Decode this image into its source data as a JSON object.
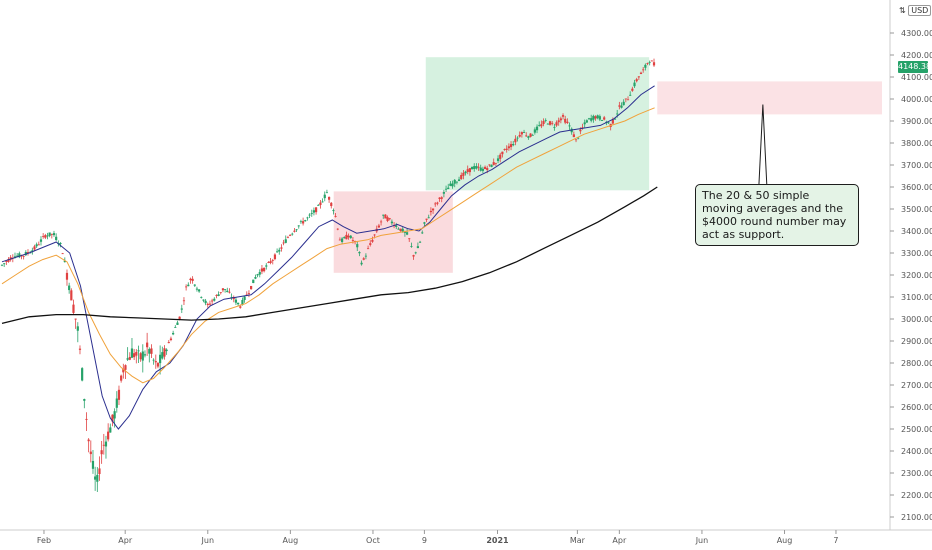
{
  "chart_data": {
    "type": "candlestick",
    "currency": "USD",
    "currency_icon": "scale-icon",
    "last_price": "4148.38",
    "y_ticks": [
      "4300.00",
      "4200.00",
      "4100.00",
      "4000.00",
      "3900.00",
      "3800.00",
      "3700.00",
      "3600.00",
      "3500.00",
      "3400.00",
      "3300.00",
      "3200.00",
      "3100.00",
      "3000.00",
      "2900.00",
      "2800.00",
      "2700.00",
      "2600.00",
      "2500.00",
      "2400.00",
      "2300.00",
      "2200.00",
      "2100.00"
    ],
    "y_tick_values": [
      4300,
      4200,
      4100,
      4000,
      3900,
      3800,
      3700,
      3600,
      3500,
      3400,
      3300,
      3200,
      3100,
      3000,
      2900,
      2800,
      2700,
      2600,
      2500,
      2400,
      2300,
      2200,
      2100
    ],
    "x_ticks": [
      {
        "label": "Feb",
        "t": 31,
        "bold": false
      },
      {
        "label": "Apr",
        "t": 91,
        "bold": false
      },
      {
        "label": "Jun",
        "t": 152,
        "bold": false
      },
      {
        "label": "Aug",
        "t": 213,
        "bold": false
      },
      {
        "label": "Oct",
        "t": 274,
        "bold": false
      },
      {
        "label": "9",
        "t": 312,
        "bold": false
      },
      {
        "label": "2021",
        "t": 366,
        "bold": true
      },
      {
        "label": "Mar",
        "t": 425,
        "bold": false
      },
      {
        "label": "Apr",
        "t": 456,
        "bold": false
      },
      {
        "label": "Jun",
        "t": 517,
        "bold": false
      },
      {
        "label": "Aug",
        "t": 578,
        "bold": false
      },
      {
        "label": "7",
        "t": 616,
        "bold": false
      }
    ],
    "price_path": [
      [
        0,
        3245
      ],
      [
        8,
        3285
      ],
      [
        16,
        3290
      ],
      [
        24,
        3320
      ],
      [
        32,
        3380
      ],
      [
        38,
        3386
      ],
      [
        44,
        3330
      ],
      [
        50,
        3150
      ],
      [
        56,
        2950
      ],
      [
        60,
        2700
      ],
      [
        64,
        2450
      ],
      [
        68,
        2290
      ],
      [
        70,
        2240
      ],
      [
        74,
        2410
      ],
      [
        78,
        2470
      ],
      [
        82,
        2540
      ],
      [
        86,
        2640
      ],
      [
        90,
        2790
      ],
      [
        96,
        2850
      ],
      [
        102,
        2820
      ],
      [
        108,
        2870
      ],
      [
        114,
        2780
      ],
      [
        120,
        2840
      ],
      [
        126,
        2930
      ],
      [
        132,
        3020
      ],
      [
        136,
        3140
      ],
      [
        140,
        3190
      ],
      [
        146,
        3120
      ],
      [
        152,
        3060
      ],
      [
        158,
        3100
      ],
      [
        164,
        3140
      ],
      [
        170,
        3100
      ],
      [
        176,
        3060
      ],
      [
        182,
        3120
      ],
      [
        188,
        3200
      ],
      [
        194,
        3230
      ],
      [
        200,
        3270
      ],
      [
        206,
        3320
      ],
      [
        212,
        3380
      ],
      [
        220,
        3430
      ],
      [
        228,
        3470
      ],
      [
        234,
        3510
      ],
      [
        240,
        3575
      ],
      [
        246,
        3480
      ],
      [
        250,
        3350
      ],
      [
        256,
        3380
      ],
      [
        262,
        3340
      ],
      [
        266,
        3250
      ],
      [
        270,
        3310
      ],
      [
        276,
        3390
      ],
      [
        282,
        3470
      ],
      [
        288,
        3440
      ],
      [
        294,
        3410
      ],
      [
        300,
        3380
      ],
      [
        304,
        3290
      ],
      [
        308,
        3330
      ],
      [
        312,
        3430
      ],
      [
        318,
        3500
      ],
      [
        324,
        3550
      ],
      [
        330,
        3600
      ],
      [
        336,
        3630
      ],
      [
        342,
        3660
      ],
      [
        348,
        3690
      ],
      [
        356,
        3680
      ],
      [
        362,
        3700
      ],
      [
        366,
        3720
      ],
      [
        372,
        3770
      ],
      [
        378,
        3800
      ],
      [
        384,
        3850
      ],
      [
        390,
        3830
      ],
      [
        396,
        3870
      ],
      [
        402,
        3900
      ],
      [
        408,
        3880
      ],
      [
        414,
        3920
      ],
      [
        420,
        3870
      ],
      [
        424,
        3810
      ],
      [
        428,
        3860
      ],
      [
        432,
        3900
      ],
      [
        438,
        3920
      ],
      [
        444,
        3910
      ],
      [
        450,
        3880
      ],
      [
        456,
        3960
      ],
      [
        462,
        4000
      ],
      [
        466,
        4050
      ],
      [
        470,
        4100
      ],
      [
        474,
        4130
      ],
      [
        478,
        4180
      ],
      [
        481,
        4160
      ],
      [
        483,
        4148
      ]
    ],
    "series": [
      {
        "name": "",
        "type": "sma20",
        "color": "#2b2f8f",
        "points": [
          [
            0,
            3260
          ],
          [
            20,
            3300
          ],
          [
            40,
            3350
          ],
          [
            50,
            3300
          ],
          [
            58,
            3150
          ],
          [
            66,
            2900
          ],
          [
            74,
            2650
          ],
          [
            80,
            2550
          ],
          [
            86,
            2500
          ],
          [
            94,
            2560
          ],
          [
            104,
            2680
          ],
          [
            114,
            2760
          ],
          [
            124,
            2800
          ],
          [
            134,
            2880
          ],
          [
            144,
            3000
          ],
          [
            154,
            3060
          ],
          [
            164,
            3090
          ],
          [
            174,
            3100
          ],
          [
            184,
            3110
          ],
          [
            194,
            3160
          ],
          [
            204,
            3220
          ],
          [
            214,
            3280
          ],
          [
            224,
            3350
          ],
          [
            234,
            3420
          ],
          [
            244,
            3450
          ],
          [
            252,
            3420
          ],
          [
            262,
            3390
          ],
          [
            272,
            3400
          ],
          [
            282,
            3410
          ],
          [
            292,
            3430
          ],
          [
            300,
            3410
          ],
          [
            308,
            3400
          ],
          [
            316,
            3440
          ],
          [
            324,
            3500
          ],
          [
            332,
            3560
          ],
          [
            342,
            3610
          ],
          [
            352,
            3650
          ],
          [
            362,
            3680
          ],
          [
            372,
            3720
          ],
          [
            382,
            3760
          ],
          [
            392,
            3790
          ],
          [
            402,
            3820
          ],
          [
            412,
            3850
          ],
          [
            422,
            3860
          ],
          [
            432,
            3870
          ],
          [
            442,
            3880
          ],
          [
            452,
            3910
          ],
          [
            462,
            3960
          ],
          [
            472,
            4020
          ],
          [
            482,
            4060
          ]
        ]
      },
      {
        "name": "",
        "type": "sma50",
        "color": "#f0a23b",
        "points": [
          [
            0,
            3160
          ],
          [
            10,
            3200
          ],
          [
            20,
            3240
          ],
          [
            30,
            3270
          ],
          [
            40,
            3290
          ],
          [
            48,
            3260
          ],
          [
            56,
            3160
          ],
          [
            64,
            3030
          ],
          [
            72,
            2930
          ],
          [
            80,
            2840
          ],
          [
            88,
            2780
          ],
          [
            96,
            2740
          ],
          [
            104,
            2710
          ],
          [
            112,
            2730
          ],
          [
            120,
            2780
          ],
          [
            130,
            2850
          ],
          [
            140,
            2930
          ],
          [
            150,
            2990
          ],
          [
            160,
            3030
          ],
          [
            170,
            3050
          ],
          [
            180,
            3070
          ],
          [
            190,
            3110
          ],
          [
            200,
            3160
          ],
          [
            210,
            3200
          ],
          [
            220,
            3240
          ],
          [
            230,
            3280
          ],
          [
            240,
            3320
          ],
          [
            250,
            3340
          ],
          [
            260,
            3350
          ],
          [
            270,
            3360
          ],
          [
            280,
            3380
          ],
          [
            290,
            3390
          ],
          [
            300,
            3400
          ],
          [
            310,
            3410
          ],
          [
            320,
            3450
          ],
          [
            330,
            3490
          ],
          [
            340,
            3530
          ],
          [
            350,
            3570
          ],
          [
            360,
            3610
          ],
          [
            370,
            3650
          ],
          [
            380,
            3690
          ],
          [
            390,
            3720
          ],
          [
            400,
            3750
          ],
          [
            410,
            3780
          ],
          [
            420,
            3810
          ],
          [
            430,
            3840
          ],
          [
            440,
            3860
          ],
          [
            450,
            3880
          ],
          [
            460,
            3900
          ],
          [
            470,
            3930
          ],
          [
            482,
            3960
          ]
        ]
      },
      {
        "name": "",
        "type": "sma200",
        "color": "#111111",
        "points": [
          [
            0,
            2980
          ],
          [
            20,
            3010
          ],
          [
            40,
            3020
          ],
          [
            60,
            3020
          ],
          [
            80,
            3010
          ],
          [
            100,
            3005
          ],
          [
            120,
            3000
          ],
          [
            140,
            2995
          ],
          [
            160,
            3000
          ],
          [
            180,
            3010
          ],
          [
            200,
            3030
          ],
          [
            220,
            3050
          ],
          [
            240,
            3070
          ],
          [
            260,
            3090
          ],
          [
            280,
            3110
          ],
          [
            300,
            3120
          ],
          [
            320,
            3140
          ],
          [
            340,
            3170
          ],
          [
            360,
            3210
          ],
          [
            380,
            3260
          ],
          [
            400,
            3320
          ],
          [
            420,
            3380
          ],
          [
            440,
            3440
          ],
          [
            460,
            3510
          ],
          [
            474,
            3560
          ],
          [
            484,
            3600
          ]
        ]
      }
    ],
    "zones": [
      {
        "name": "",
        "color": "#f9d5d8",
        "t0": 245,
        "t1": 333,
        "p0": 3210,
        "p1": 3580
      },
      {
        "name": "",
        "color": "#cfeedb",
        "t0": 313,
        "t1": 478,
        "p0": 3585,
        "p1": 4190
      },
      {
        "name": "",
        "color": "#fadde0",
        "t0": 484,
        "t1": 650,
        "p0": 3930,
        "p1": 4080
      }
    ],
    "annotation": {
      "text": "The 20 & 50 simple moving averages and the $4000 round number may act as support.",
      "pointer_t": 562,
      "pointer_p": 3975
    },
    "colors": {
      "up": "#26a269",
      "down": "#e04040",
      "sma20": "#2b2f8f",
      "sma50": "#f0a23b",
      "sma200": "#111111"
    },
    "y_range": [
      2050,
      4400
    ],
    "x_range": [
      0,
      650
    ]
  }
}
